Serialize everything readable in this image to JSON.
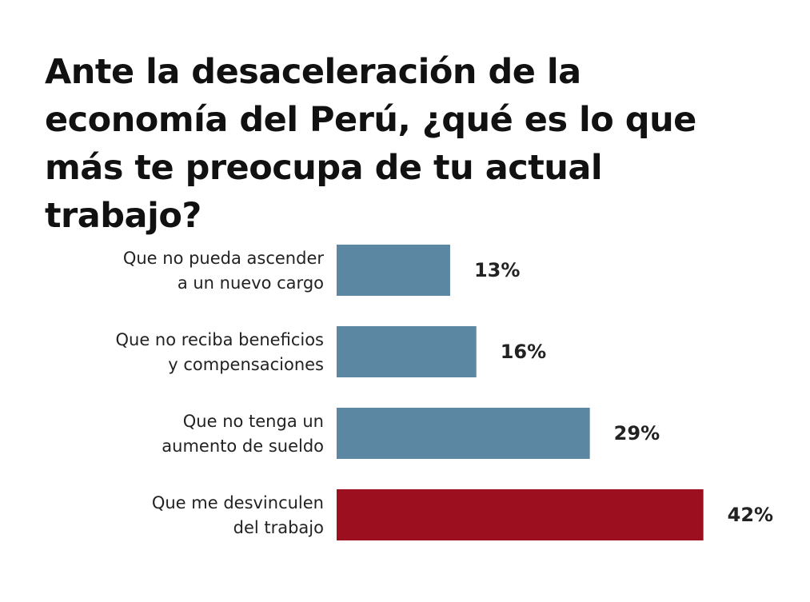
{
  "chart_data": {
    "type": "barh",
    "title": "Ante la desaceleración de la economía del Perú, ¿qué es lo que más te preocupa de tu actual trabajo?",
    "categories": [
      [
        "Que no pueda ascender",
        "a un nuevo cargo"
      ],
      [
        "Que no reciba beneficios",
        "y compensaciones"
      ],
      [
        "Que no tenga un",
        "aumento de sueldo"
      ],
      [
        "Que me desvinculen",
        "del trabajo"
      ]
    ],
    "values": [
      13,
      16,
      29,
      42
    ],
    "value_labels": [
      "13%",
      "16%",
      "29%",
      "42%"
    ],
    "colors": [
      "#5b87a3",
      "#5b87a3",
      "#5b87a3",
      "#9b0f1e"
    ]
  }
}
